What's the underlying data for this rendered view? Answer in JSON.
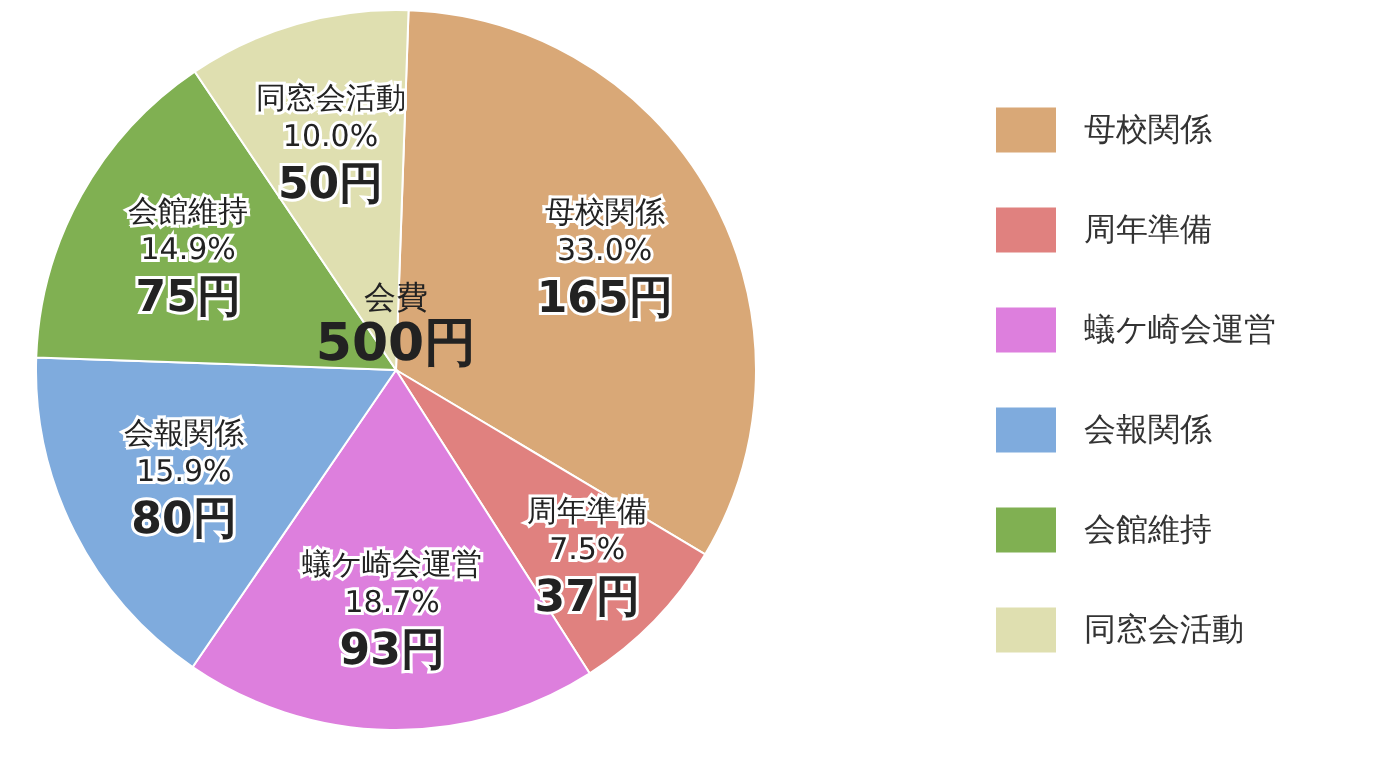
{
  "chart_data": {
    "type": "pie",
    "categories": [
      "母校関係",
      "周年準備",
      "蟻ケ崎会運営",
      "会報関係",
      "会館維持",
      "同窓会活動"
    ],
    "values": [
      165,
      37,
      93,
      80,
      75,
      50
    ],
    "colors": [
      "#d9a877",
      "#e0817f",
      "#dd7fdd",
      "#7fabdd",
      "#80b052",
      "#dfdfb0"
    ],
    "value_labels": [
      "33.0%\n165円",
      "7.5%\n37円",
      "18.7%\n93円",
      "15.9%\n80円",
      "14.9%\n75円",
      "10.0%\n50円"
    ],
    "annotations": [
      "会費\n500円"
    ],
    "legend": "right"
  }
}
